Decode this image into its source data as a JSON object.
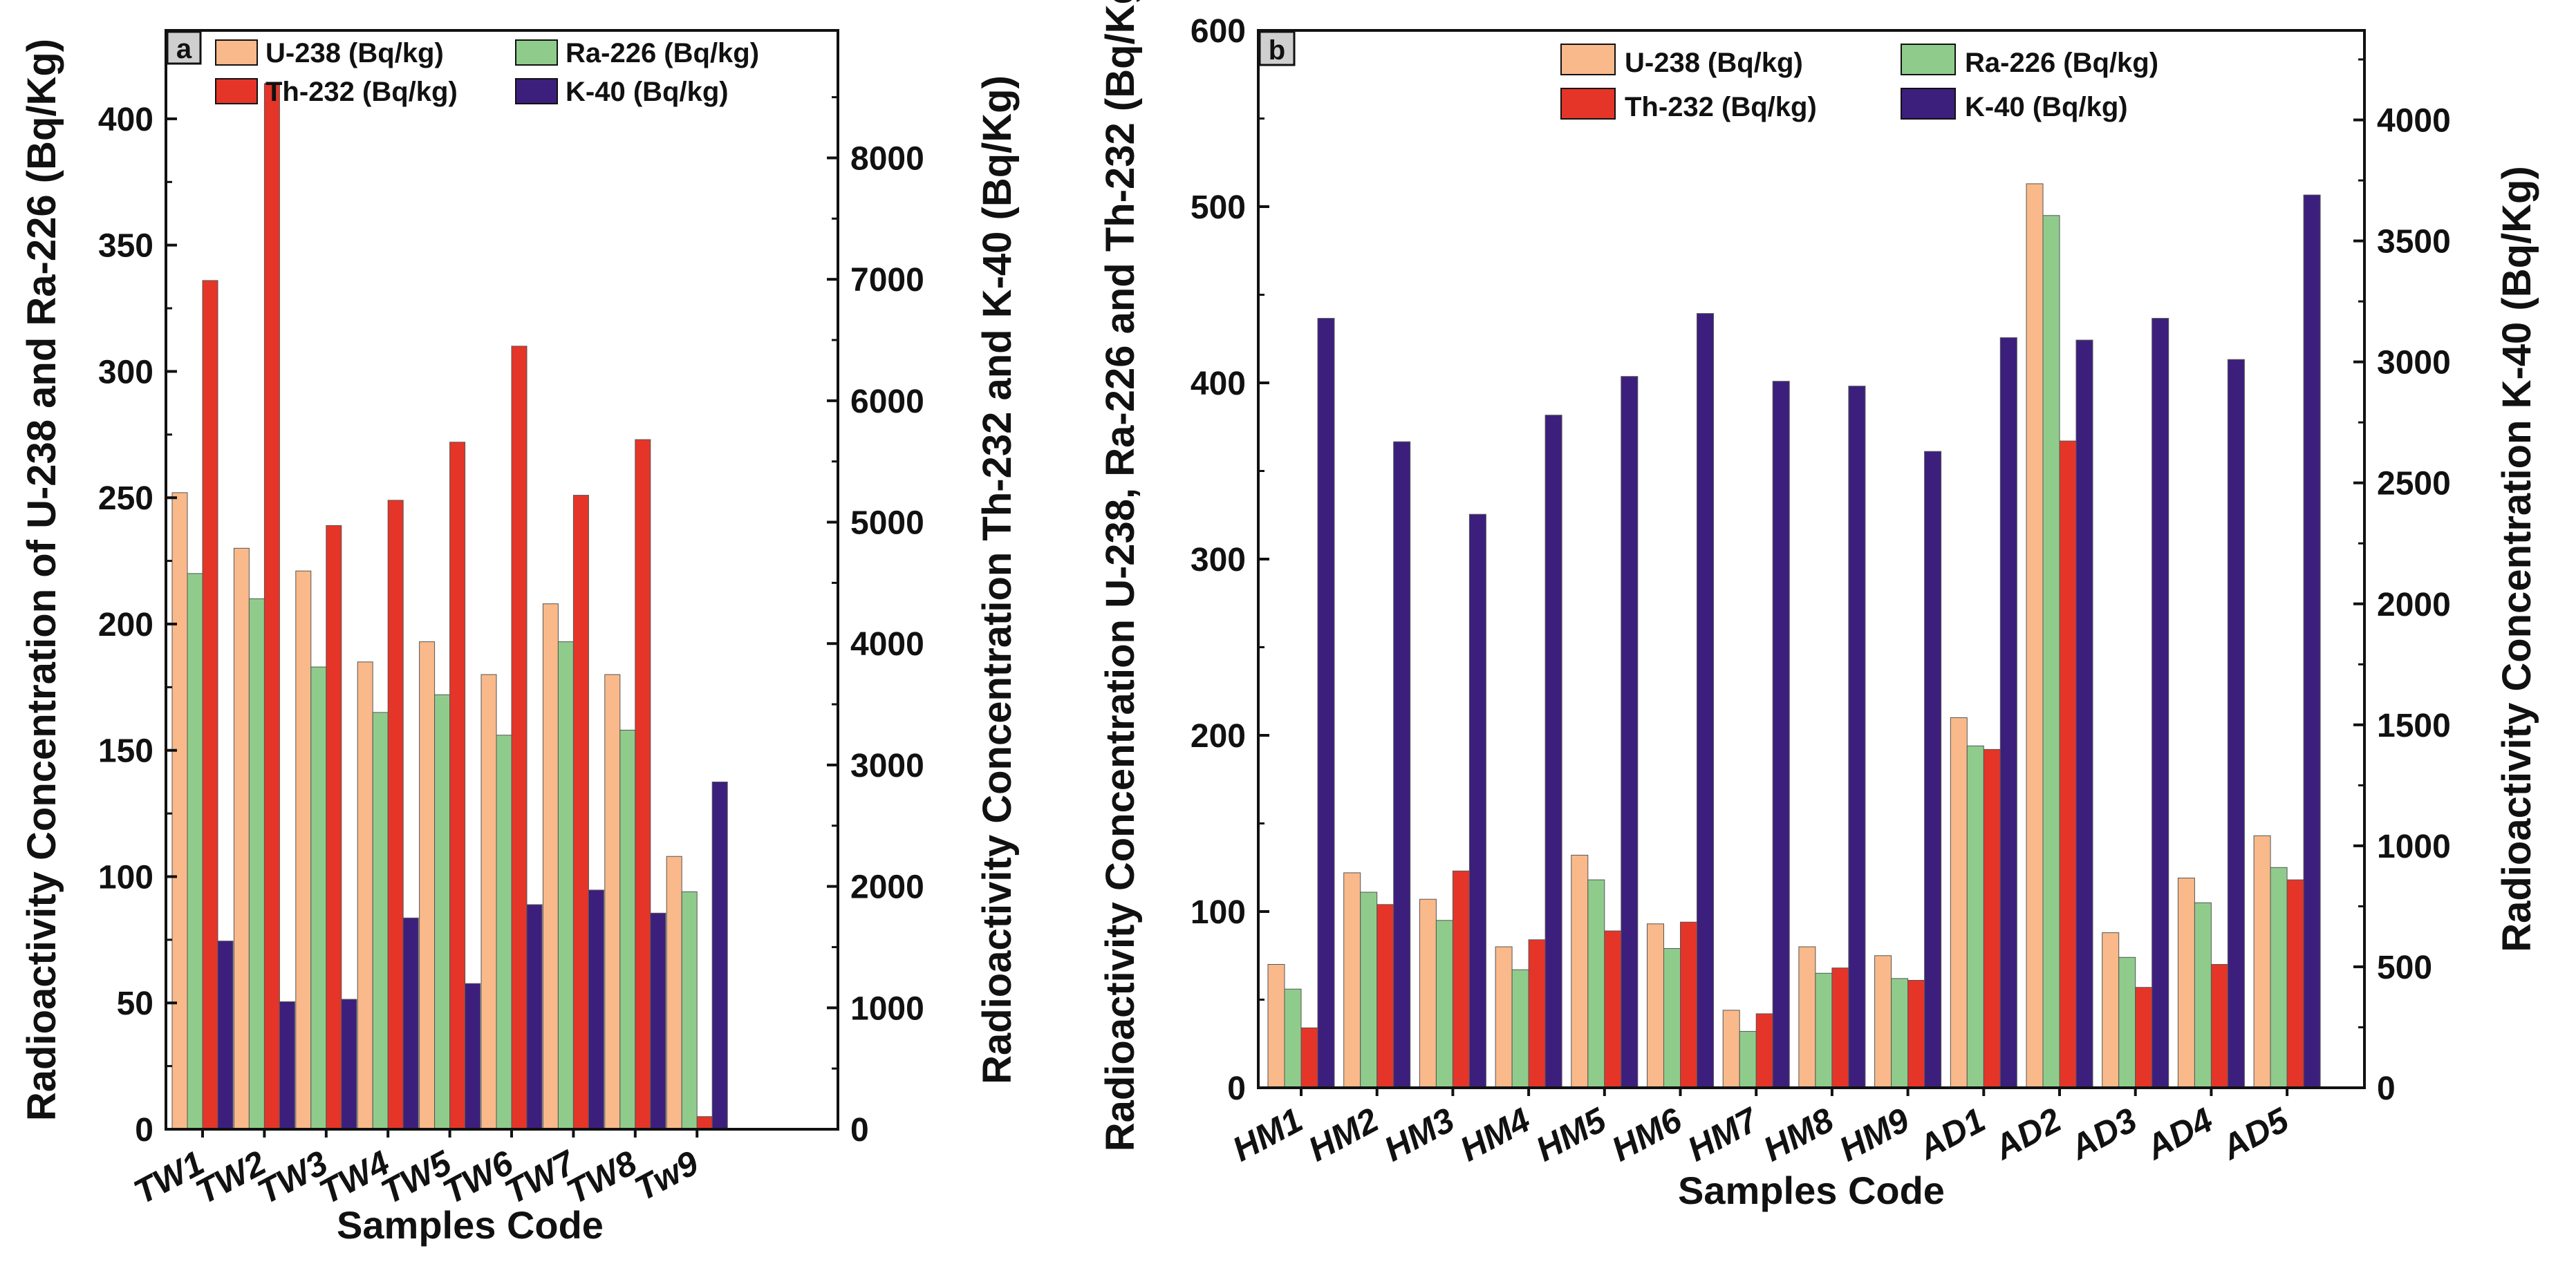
{
  "colors": {
    "u238": "#f9b98a",
    "ra226": "#8fcc8c",
    "th232": "#e53528",
    "k40": "#3c1f7c",
    "tag_bg": "#cfcfcf"
  },
  "legend_labels": [
    "U-238 (Bq/kg)",
    "Ra-226 (Bq/kg)",
    "Th-232 (Bq/kg)",
    "K-40 (Bq/kg)"
  ],
  "chart_data": [
    {
      "panel": "a",
      "type": "bar",
      "xlabel": "Samples Code",
      "ylabel_left": "Radioactivity Concentration of U-238 and Ra-226 (Bq/Kg)",
      "ylabel_right": "Radioactivity Concentration Th-232 and K-40 (Bq/Kg)",
      "left_ylim": [
        0,
        435
      ],
      "left_ticks": [
        0,
        50,
        100,
        150,
        200,
        250,
        300,
        350,
        400
      ],
      "right_ylim": [
        0,
        9050
      ],
      "right_ticks": [
        0,
        1000,
        2000,
        3000,
        4000,
        5000,
        6000,
        7000,
        8000
      ],
      "categories": [
        "TW1",
        "TW2",
        "TW3",
        "TW4",
        "TW5",
        "TW6",
        "TW7",
        "TW8",
        "Tw9"
      ],
      "series": [
        {
          "name": "U-238 (Bq/kg)",
          "key": "u238",
          "axis": "left",
          "values": [
            252,
            230,
            221,
            185,
            193,
            180,
            208,
            180,
            108
          ]
        },
        {
          "name": "Ra-226 (Bq/kg)",
          "key": "ra226",
          "axis": "left",
          "values": [
            220,
            210,
            183,
            165,
            172,
            156,
            193,
            158,
            94
          ]
        },
        {
          "name": "Th-232 (Bq/kg)",
          "key": "th232",
          "axis": "left",
          "values": [
            336,
            414,
            239,
            249,
            272,
            310,
            251,
            273,
            5
          ]
        },
        {
          "name": "K-40 (Bq/kg)",
          "key": "k40",
          "axis": "right",
          "values": [
            1550,
            1050,
            1070,
            1740,
            1200,
            1850,
            1970,
            1780,
            2860
          ]
        }
      ]
    },
    {
      "panel": "b",
      "type": "bar",
      "xlabel": "Samples Code",
      "ylabel_left": "Radioactivity Concentration U-238, Ra-226 and Th-232 (Bq/Kg)",
      "ylabel_right": "Radioactivity Concentration K-40 (Bq/Kg)",
      "left_ylim": [
        0,
        600
      ],
      "left_ticks": [
        0,
        100,
        200,
        300,
        400,
        500,
        600
      ],
      "right_ylim": [
        0,
        4370
      ],
      "right_ticks": [
        0,
        500,
        1000,
        1500,
        2000,
        2500,
        3000,
        3500,
        4000
      ],
      "categories": [
        "HM1",
        "HM2",
        "HM3",
        "HM4",
        "HM5",
        "HM6",
        "HM7",
        "HM8",
        "HM9",
        "AD1",
        "AD2",
        "AD3",
        "AD4",
        "AD5"
      ],
      "series": [
        {
          "name": "U-238 (Bq/kg)",
          "key": "u238",
          "axis": "left",
          "values": [
            70,
            122,
            107,
            80,
            132,
            93,
            44,
            80,
            75,
            210,
            513,
            88,
            119,
            143
          ]
        },
        {
          "name": "Ra-226 (Bq/kg)",
          "key": "ra226",
          "axis": "left",
          "values": [
            56,
            111,
            95,
            67,
            118,
            79,
            32,
            65,
            62,
            194,
            495,
            74,
            105,
            125
          ]
        },
        {
          "name": "Th-232 (Bq/kg)",
          "key": "th232",
          "axis": "left",
          "values": [
            34,
            104,
            123,
            84,
            89,
            94,
            42,
            68,
            61,
            192,
            367,
            57,
            70,
            118
          ]
        },
        {
          "name": "K-40 (Bq/kg)",
          "key": "k40",
          "axis": "right",
          "values": [
            3180,
            2670,
            2370,
            2780,
            2940,
            3200,
            2920,
            2900,
            2630,
            3100,
            3090,
            3180,
            3010,
            3690
          ]
        }
      ]
    }
  ]
}
